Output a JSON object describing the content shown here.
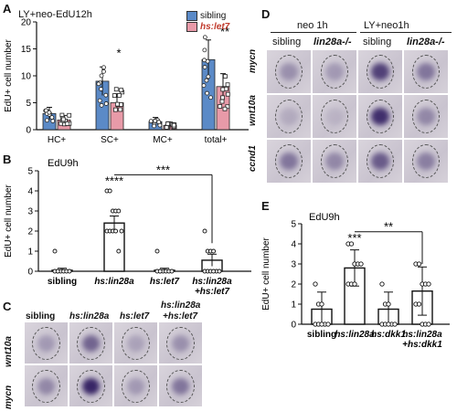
{
  "panelA": {
    "letter": "A",
    "title": "LY+neo-EdU12h",
    "ylabel": "EdU+ cell number",
    "legend": [
      "sibling",
      "hs:let7"
    ],
    "sig": [
      "*",
      "**"
    ]
  },
  "panelB": {
    "letter": "B",
    "title": "EdU9h",
    "ylabel": "EdU+ cell number",
    "sig": [
      "****",
      "***"
    ],
    "xlabels": [
      "sibling",
      "hs:lin28a",
      "hs:let7",
      "hs:lin28a",
      "+hs:let7"
    ]
  },
  "panelC": {
    "letter": "C",
    "cols": [
      "sibling",
      "hs:lin28a",
      "hs:let7",
      "hs:lin28a",
      "+hs:let7"
    ],
    "rows": [
      "wnt10a",
      "mycn"
    ]
  },
  "panelD": {
    "letter": "D",
    "group1": "neo 1h",
    "group2": "LY+neo1h",
    "cols": [
      "sibling",
      "lin28a-/-",
      "sibling",
      "lin28a-/-"
    ],
    "rows": [
      "mycn",
      "wnt10a",
      "ccnd1"
    ]
  },
  "panelE": {
    "letter": "E",
    "title": "EdU9h",
    "ylabel": "EdU+ cell number",
    "sig": [
      "***",
      "**"
    ],
    "xlabels": [
      "sibling",
      "hs:lin28a",
      "hs:dkk1",
      "hs:lin28a",
      "+hs:dkk1"
    ]
  },
  "chart_data": [
    {
      "type": "bar",
      "title": "LY+neo-EdU12h",
      "xlabel": "",
      "ylabel": "EdU+ cell number",
      "categories": [
        "HC+",
        "SC+",
        "MC+",
        "total+"
      ],
      "series": [
        {
          "name": "sibling",
          "values": [
            3,
            9,
            1.5,
            13
          ],
          "color": "#5b8ac7"
        },
        {
          "name": "hs:let7",
          "values": [
            1.8,
            5,
            0.8,
            8
          ],
          "color": "#e89aa8"
        }
      ],
      "ylim": [
        0,
        20
      ],
      "yticks": [
        0,
        5,
        10,
        15,
        20
      ]
    },
    {
      "type": "bar",
      "title": "EdU9h",
      "xlabel": "",
      "ylabel": "EdU+ cell number",
      "categories": [
        "sibling",
        "hs:lin28a",
        "hs:let7",
        "hs:lin28a +hs:let7"
      ],
      "values": [
        0.05,
        2.4,
        0.05,
        0.55
      ],
      "ylim": [
        0,
        5
      ],
      "yticks": [
        0,
        1,
        2,
        3,
        4,
        5
      ]
    },
    {
      "type": "bar",
      "title": "EdU9h",
      "xlabel": "",
      "ylabel": "EdU+ cell number",
      "categories": [
        "sibling",
        "hs:lin28a",
        "hs:dkk1",
        "hs:lin28a +hs:dkk1"
      ],
      "values": [
        0.75,
        2.8,
        0.75,
        1.65
      ],
      "ylim": [
        0,
        5
      ],
      "yticks": [
        0,
        1,
        2,
        3,
        4,
        5
      ]
    }
  ]
}
